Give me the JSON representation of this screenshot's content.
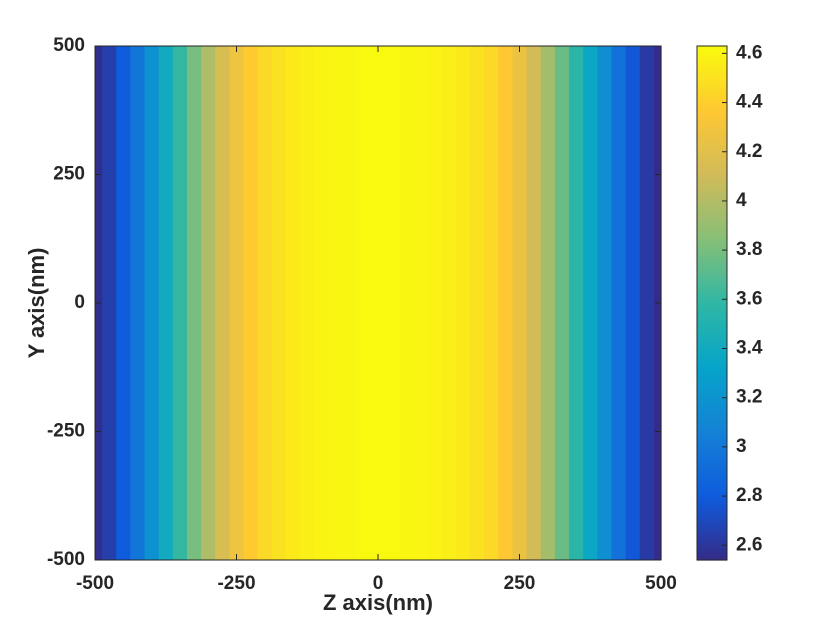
{
  "chart_data": {
    "type": "heatmap",
    "xlabel": "Z axis(nm)",
    "ylabel": "Y axis(nm)",
    "x": [
      -500,
      -475,
      -450,
      -425,
      -400,
      -375,
      -350,
      -325,
      -300,
      -275,
      -250,
      -225,
      -200,
      -175,
      -150,
      -125,
      -100,
      -75,
      -50,
      -25,
      0,
      25,
      50,
      75,
      100,
      125,
      150,
      175,
      200,
      225,
      250,
      275,
      300,
      325,
      350,
      375,
      400,
      425,
      450,
      475,
      500
    ],
    "values": [
      2.56,
      2.65,
      2.8,
      2.98,
      3.18,
      3.4,
      3.6,
      3.8,
      3.98,
      4.15,
      4.28,
      4.38,
      4.45,
      4.5,
      4.54,
      4.57,
      4.59,
      4.6,
      4.61,
      4.62,
      4.62,
      4.62,
      4.61,
      4.6,
      4.59,
      4.57,
      4.54,
      4.5,
      4.45,
      4.37,
      4.26,
      4.12,
      3.95,
      3.76,
      3.56,
      3.36,
      3.16,
      2.96,
      2.78,
      2.63,
      2.55
    ],
    "xlim": [
      -500,
      500
    ],
    "ylim": [
      -500,
      500
    ],
    "xticks": [
      -500,
      -250,
      0,
      250,
      500
    ],
    "yticks": [
      -500,
      -250,
      0,
      250,
      500
    ],
    "colormap": "parula",
    "clim": [
      2.54,
      4.63
    ],
    "cticks": [
      2.6,
      2.8,
      3,
      3.2,
      3.4,
      3.6,
      3.8,
      4,
      4.2,
      4.4,
      4.6
    ]
  }
}
